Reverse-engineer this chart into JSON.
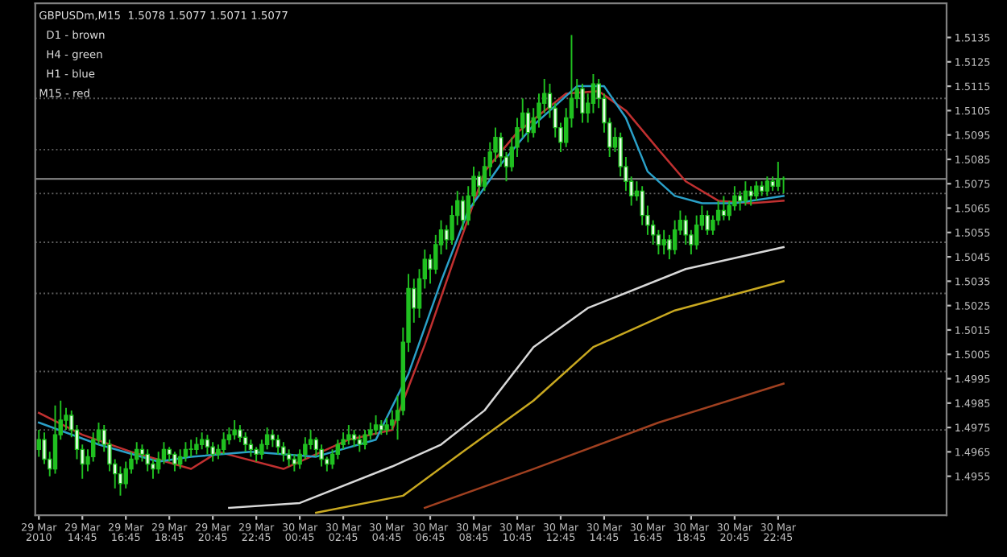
{
  "chart_data": {
    "type": "candlestick",
    "annotations": [
      "GBPUSDm,M15  1.5078 1.5077 1.5071 1.5077",
      "D1 - brown",
      "H4 - green",
      "H1 - blue",
      "M15 - red"
    ],
    "x": [
      "2010-03-29T12:45",
      "2010-03-29T13:00",
      "2010-03-29T13:15",
      "2010-03-29T13:30",
      "2010-03-29T13:45",
      "2010-03-29T14:00",
      "2010-03-29T14:15",
      "2010-03-29T14:30",
      "2010-03-29T14:45",
      "2010-03-29T15:00",
      "2010-03-29T15:15",
      "2010-03-29T15:30",
      "2010-03-29T15:45",
      "2010-03-29T16:00",
      "2010-03-29T16:15",
      "2010-03-29T16:30",
      "2010-03-29T16:45",
      "2010-03-29T17:00",
      "2010-03-29T17:15",
      "2010-03-29T17:30",
      "2010-03-29T17:45",
      "2010-03-29T18:00",
      "2010-03-29T18:15",
      "2010-03-29T18:30",
      "2010-03-29T18:45",
      "2010-03-29T19:00",
      "2010-03-29T19:15",
      "2010-03-29T19:30",
      "2010-03-29T19:45",
      "2010-03-29T20:00",
      "2010-03-29T20:15",
      "2010-03-29T20:30",
      "2010-03-29T20:45",
      "2010-03-29T21:00",
      "2010-03-29T21:15",
      "2010-03-29T21:30",
      "2010-03-29T21:45",
      "2010-03-29T22:00",
      "2010-03-29T22:15",
      "2010-03-29T22:30",
      "2010-03-29T22:45",
      "2010-03-29T23:00",
      "2010-03-29T23:15",
      "2010-03-29T23:30",
      "2010-03-29T23:45",
      "2010-03-30T00:00",
      "2010-03-30T00:15",
      "2010-03-30T00:30",
      "2010-03-30T00:45",
      "2010-03-30T01:00",
      "2010-03-30T01:15",
      "2010-03-30T01:30",
      "2010-03-30T01:45",
      "2010-03-30T02:00",
      "2010-03-30T02:15",
      "2010-03-30T02:30",
      "2010-03-30T02:45",
      "2010-03-30T03:00",
      "2010-03-30T03:15",
      "2010-03-30T03:30",
      "2010-03-30T03:45",
      "2010-03-30T04:00",
      "2010-03-30T04:15",
      "2010-03-30T04:30",
      "2010-03-30T04:45",
      "2010-03-30T05:00",
      "2010-03-30T05:15",
      "2010-03-30T05:30",
      "2010-03-30T05:45",
      "2010-03-30T06:00",
      "2010-03-30T06:15",
      "2010-03-30T06:30",
      "2010-03-30T06:45",
      "2010-03-30T07:00",
      "2010-03-30T07:15",
      "2010-03-30T07:30",
      "2010-03-30T07:45",
      "2010-03-30T08:00",
      "2010-03-30T08:15",
      "2010-03-30T08:30",
      "2010-03-30T08:45",
      "2010-03-30T09:00",
      "2010-03-30T09:15",
      "2010-03-30T09:30",
      "2010-03-30T09:45",
      "2010-03-30T10:00",
      "2010-03-30T10:15",
      "2010-03-30T10:30",
      "2010-03-30T10:45",
      "2010-03-30T11:00",
      "2010-03-30T11:15",
      "2010-03-30T11:30",
      "2010-03-30T11:45",
      "2010-03-30T12:00",
      "2010-03-30T12:15",
      "2010-03-30T12:30",
      "2010-03-30T12:45",
      "2010-03-30T13:00",
      "2010-03-30T13:15",
      "2010-03-30T13:30",
      "2010-03-30T13:45",
      "2010-03-30T14:00",
      "2010-03-30T14:15",
      "2010-03-30T14:30",
      "2010-03-30T14:45",
      "2010-03-30T15:00",
      "2010-03-30T15:15",
      "2010-03-30T15:30",
      "2010-03-30T15:45",
      "2010-03-30T16:00",
      "2010-03-30T16:15",
      "2010-03-30T16:30",
      "2010-03-30T16:45",
      "2010-03-30T17:00",
      "2010-03-30T17:15",
      "2010-03-30T17:30",
      "2010-03-30T17:45",
      "2010-03-30T18:00",
      "2010-03-30T18:15",
      "2010-03-30T18:30",
      "2010-03-30T18:45",
      "2010-03-30T19:00",
      "2010-03-30T19:15",
      "2010-03-30T19:30",
      "2010-03-30T19:45",
      "2010-03-30T20:00",
      "2010-03-30T20:15",
      "2010-03-30T20:30",
      "2010-03-30T20:45",
      "2010-03-30T21:00",
      "2010-03-30T21:15",
      "2010-03-30T21:30",
      "2010-03-30T21:45",
      "2010-03-30T22:00",
      "2010-03-30T22:15",
      "2010-03-30T22:30",
      "2010-03-30T22:45",
      "2010-03-30T23:00"
    ],
    "ohlc": [
      [
        1.4966,
        1.4974,
        1.4963,
        1.497
      ],
      [
        1.497,
        1.4973,
        1.496,
        1.4962
      ],
      [
        1.4962,
        1.4965,
        1.4955,
        1.4958
      ],
      [
        1.4958,
        1.4984,
        1.4956,
        1.4972
      ],
      [
        1.4972,
        1.4986,
        1.497,
        1.4978
      ],
      [
        1.4978,
        1.4983,
        1.4974,
        1.498
      ],
      [
        1.498,
        1.4982,
        1.4971,
        1.4974
      ],
      [
        1.4974,
        1.4976,
        1.4962,
        1.4966
      ],
      [
        1.4966,
        1.4968,
        1.4954,
        1.496
      ],
      [
        1.496,
        1.4966,
        1.4957,
        1.4963
      ],
      [
        1.4963,
        1.4973,
        1.4961,
        1.497
      ],
      [
        1.497,
        1.4977,
        1.4968,
        1.4974
      ],
      [
        1.4974,
        1.4976,
        1.4965,
        1.4968
      ],
      [
        1.4968,
        1.497,
        1.4957,
        1.496
      ],
      [
        1.496,
        1.4962,
        1.495,
        1.4956
      ],
      [
        1.4956,
        1.4959,
        1.4947,
        1.4952
      ],
      [
        1.4952,
        1.4961,
        1.495,
        1.4958
      ],
      [
        1.4958,
        1.4965,
        1.4956,
        1.4962
      ],
      [
        1.4962,
        1.4969,
        1.496,
        1.4966
      ],
      [
        1.4966,
        1.4968,
        1.4961,
        1.4964
      ],
      [
        1.4964,
        1.4966,
        1.4957,
        1.496
      ],
      [
        1.496,
        1.4962,
        1.4954,
        1.4958
      ],
      [
        1.4958,
        1.4965,
        1.4956,
        1.4962
      ],
      [
        1.4962,
        1.4969,
        1.496,
        1.4966
      ],
      [
        1.4966,
        1.4967,
        1.4961,
        1.4964
      ],
      [
        1.4964,
        1.4965,
        1.4957,
        1.496
      ],
      [
        1.496,
        1.4966,
        1.4958,
        1.4963
      ],
      [
        1.4963,
        1.4969,
        1.4961,
        1.4966
      ],
      [
        1.4966,
        1.497,
        1.4963,
        1.4966
      ],
      [
        1.4966,
        1.4971,
        1.4964,
        1.4968
      ],
      [
        1.4968,
        1.4973,
        1.4966,
        1.497
      ],
      [
        1.497,
        1.4972,
        1.4964,
        1.4967
      ],
      [
        1.4967,
        1.4969,
        1.4961,
        1.4964
      ],
      [
        1.4964,
        1.4968,
        1.4962,
        1.4966
      ],
      [
        1.4966,
        1.4973,
        1.4964,
        1.497
      ],
      [
        1.497,
        1.4975,
        1.4968,
        1.4972
      ],
      [
        1.4972,
        1.4978,
        1.497,
        1.4974
      ],
      [
        1.4974,
        1.4976,
        1.4969,
        1.4971
      ],
      [
        1.4971,
        1.4973,
        1.4965,
        1.4968
      ],
      [
        1.4968,
        1.497,
        1.4963,
        1.4966
      ],
      [
        1.4966,
        1.4967,
        1.4961,
        1.4964
      ],
      [
        1.4964,
        1.497,
        1.4962,
        1.4968
      ],
      [
        1.4968,
        1.4975,
        1.4966,
        1.4972
      ],
      [
        1.4972,
        1.4974,
        1.4967,
        1.497
      ],
      [
        1.497,
        1.4972,
        1.4964,
        1.4967
      ],
      [
        1.4967,
        1.4969,
        1.4961,
        1.4964
      ],
      [
        1.4964,
        1.4966,
        1.4959,
        1.4962
      ],
      [
        1.4962,
        1.4964,
        1.4957,
        1.496
      ],
      [
        1.496,
        1.4966,
        1.4958,
        1.4964
      ],
      [
        1.4964,
        1.4971,
        1.4962,
        1.4968
      ],
      [
        1.4968,
        1.4974,
        1.4966,
        1.497
      ],
      [
        1.497,
        1.4971,
        1.4963,
        1.4966
      ],
      [
        1.4966,
        1.4968,
        1.4959,
        1.4962
      ],
      [
        1.4962,
        1.4963,
        1.4957,
        1.496
      ],
      [
        1.496,
        1.4966,
        1.4958,
        1.4964
      ],
      [
        1.4964,
        1.497,
        1.4962,
        1.4968
      ],
      [
        1.4968,
        1.4973,
        1.4966,
        1.497
      ],
      [
        1.497,
        1.4976,
        1.4968,
        1.4972
      ],
      [
        1.4972,
        1.4974,
        1.4967,
        1.497
      ],
      [
        1.497,
        1.4972,
        1.4965,
        1.4968
      ],
      [
        1.4968,
        1.4974,
        1.4966,
        1.4972
      ],
      [
        1.4972,
        1.4977,
        1.497,
        1.4974
      ],
      [
        1.4974,
        1.498,
        1.4972,
        1.4976
      ],
      [
        1.4976,
        1.4978,
        1.4972,
        1.4974
      ],
      [
        1.4974,
        1.4979,
        1.4972,
        1.4976
      ],
      [
        1.4976,
        1.4982,
        1.4974,
        1.4978
      ],
      [
        1.4978,
        1.4988,
        1.497,
        1.4982
      ],
      [
        1.4982,
        1.5016,
        1.498,
        1.501
      ],
      [
        1.501,
        1.5038,
        1.5006,
        1.5032
      ],
      [
        1.5032,
        1.5036,
        1.5018,
        1.5024
      ],
      [
        1.5024,
        1.504,
        1.502,
        1.5036
      ],
      [
        1.5036,
        1.5048,
        1.5032,
        1.5044
      ],
      [
        1.5044,
        1.5046,
        1.5034,
        1.504
      ],
      [
        1.504,
        1.5054,
        1.5038,
        1.505
      ],
      [
        1.505,
        1.506,
        1.5046,
        1.5056
      ],
      [
        1.5056,
        1.5058,
        1.5048,
        1.5052
      ],
      [
        1.5052,
        1.5066,
        1.505,
        1.5062
      ],
      [
        1.5062,
        1.5072,
        1.5058,
        1.5068
      ],
      [
        1.5068,
        1.507,
        1.5056,
        1.506
      ],
      [
        1.506,
        1.5074,
        1.5058,
        1.507
      ],
      [
        1.507,
        1.5082,
        1.5066,
        1.5078
      ],
      [
        1.5078,
        1.508,
        1.507,
        1.5074
      ],
      [
        1.5074,
        1.5086,
        1.5072,
        1.5082
      ],
      [
        1.5082,
        1.5092,
        1.5078,
        1.5088
      ],
      [
        1.5088,
        1.5098,
        1.5084,
        1.5094
      ],
      [
        1.5094,
        1.5096,
        1.5082,
        1.5086
      ],
      [
        1.5086,
        1.5088,
        1.5076,
        1.5082
      ],
      [
        1.5082,
        1.5094,
        1.508,
        1.509
      ],
      [
        1.509,
        1.5102,
        1.5086,
        1.5098
      ],
      [
        1.5098,
        1.511,
        1.5094,
        1.5104
      ],
      [
        1.5104,
        1.5106,
        1.5092,
        1.5096
      ],
      [
        1.5096,
        1.5106,
        1.5094,
        1.5102
      ],
      [
        1.5102,
        1.5112,
        1.5098,
        1.5108
      ],
      [
        1.5108,
        1.5118,
        1.5104,
        1.5112
      ],
      [
        1.5112,
        1.5116,
        1.5102,
        1.5106
      ],
      [
        1.5106,
        1.5108,
        1.5094,
        1.5098
      ],
      [
        1.5098,
        1.51,
        1.5088,
        1.5092
      ],
      [
        1.5092,
        1.5106,
        1.509,
        1.5102
      ],
      [
        1.5102,
        1.5136,
        1.5098,
        1.511
      ],
      [
        1.511,
        1.5118,
        1.5106,
        1.5114
      ],
      [
        1.5114,
        1.5116,
        1.51,
        1.5104
      ],
      [
        1.5104,
        1.5112,
        1.51,
        1.5108
      ],
      [
        1.5108,
        1.512,
        1.5104,
        1.5116
      ],
      [
        1.5116,
        1.5118,
        1.5106,
        1.511
      ],
      [
        1.511,
        1.5112,
        1.5096,
        1.51
      ],
      [
        1.51,
        1.5102,
        1.5086,
        1.509
      ],
      [
        1.509,
        1.5098,
        1.5088,
        1.5094
      ],
      [
        1.5094,
        1.5096,
        1.5078,
        1.5082
      ],
      [
        1.5082,
        1.5086,
        1.5072,
        1.5076
      ],
      [
        1.5076,
        1.5078,
        1.5066,
        1.507
      ],
      [
        1.507,
        1.5076,
        1.5068,
        1.5072
      ],
      [
        1.5072,
        1.5074,
        1.5058,
        1.5062
      ],
      [
        1.5062,
        1.5066,
        1.5054,
        1.5058
      ],
      [
        1.5058,
        1.506,
        1.505,
        1.5054
      ],
      [
        1.5054,
        1.5056,
        1.5046,
        1.505
      ],
      [
        1.505,
        1.5056,
        1.5046,
        1.5052
      ],
      [
        1.5052,
        1.5054,
        1.5044,
        1.5048
      ],
      [
        1.5048,
        1.506,
        1.5046,
        1.5056
      ],
      [
        1.5056,
        1.5064,
        1.5054,
        1.506
      ],
      [
        1.506,
        1.5062,
        1.505,
        1.5054
      ],
      [
        1.5054,
        1.5056,
        1.5046,
        1.505
      ],
      [
        1.505,
        1.5062,
        1.5048,
        1.5058
      ],
      [
        1.5058,
        1.5066,
        1.5056,
        1.5062
      ],
      [
        1.5062,
        1.5064,
        1.5054,
        1.5056
      ],
      [
        1.5056,
        1.5062,
        1.5054,
        1.506
      ],
      [
        1.506,
        1.5068,
        1.5058,
        1.5064
      ],
      [
        1.5064,
        1.507,
        1.506,
        1.5062
      ],
      [
        1.5062,
        1.5068,
        1.506,
        1.5066
      ],
      [
        1.5066,
        1.5074,
        1.5064,
        1.507
      ],
      [
        1.507,
        1.5072,
        1.5064,
        1.5068
      ],
      [
        1.5068,
        1.5076,
        1.5066,
        1.5072
      ],
      [
        1.5072,
        1.5074,
        1.5066,
        1.507
      ],
      [
        1.507,
        1.5076,
        1.5068,
        1.5074
      ],
      [
        1.5074,
        1.5076,
        1.507,
        1.5072
      ],
      [
        1.5072,
        1.5078,
        1.507,
        1.5076
      ],
      [
        1.5076,
        1.5078,
        1.5072,
        1.5074
      ],
      [
        1.5074,
        1.5084,
        1.5072,
        1.5077
      ],
      [
        1.5077,
        1.5078,
        1.5071,
        1.5077
      ]
    ],
    "series": [
      {
        "type": "line",
        "color": "#c03030",
        "x": [
          "2010-03-29T12:45",
          "2010-03-29T14:45",
          "2010-03-29T17:00",
          "2010-03-29T19:45",
          "2010-03-29T21:00",
          "2010-03-30T00:00",
          "2010-03-30T03:00",
          "2010-03-30T05:00",
          "2010-03-30T06:30",
          "2010-03-30T08:00",
          "2010-03-30T09:15",
          "2010-03-30T10:45",
          "2010-03-30T13:00",
          "2010-03-30T14:30",
          "2010-03-30T15:45",
          "2010-03-30T17:15",
          "2010-03-30T18:30",
          "2010-03-30T20:00",
          "2010-03-30T21:30",
          "2010-03-30T23:00"
        ],
        "values": [
          1.4981,
          1.4972,
          1.4965,
          1.4958,
          1.4965,
          1.4958,
          1.497,
          1.4974,
          1.5009,
          1.5048,
          1.508,
          1.5096,
          1.5112,
          1.5113,
          1.5105,
          1.5089,
          1.5076,
          1.5068,
          1.5067,
          1.5068
        ]
      },
      {
        "type": "line",
        "color": "#2aa0c8",
        "x": [
          "2010-03-29T12:45",
          "2010-03-29T15:30",
          "2010-03-29T18:15",
          "2010-03-29T19:45",
          "2010-03-29T22:30",
          "2010-03-30T01:30",
          "2010-03-30T04:15",
          "2010-03-30T05:45",
          "2010-03-30T07:15",
          "2010-03-30T08:30",
          "2010-03-30T10:00",
          "2010-03-30T11:30",
          "2010-03-30T13:30",
          "2010-03-30T14:45",
          "2010-03-30T15:45",
          "2010-03-30T16:45",
          "2010-03-30T18:00",
          "2010-03-30T19:15",
          "2010-03-30T20:45",
          "2010-03-30T22:15",
          "2010-03-30T23:00"
        ],
        "values": [
          1.4977,
          1.4968,
          1.4961,
          1.4963,
          1.4965,
          1.4963,
          1.497,
          1.4997,
          1.5035,
          1.5064,
          1.5083,
          1.5099,
          1.5115,
          1.5115,
          1.5102,
          1.508,
          1.507,
          1.5067,
          1.5067,
          1.5069,
          1.507
        ]
      },
      {
        "type": "line",
        "color": "#d8d8d8",
        "x": [
          "2010-03-29T21:30",
          "2010-03-30T00:45",
          "2010-03-30T05:00",
          "2010-03-30T07:15",
          "2010-03-30T09:15",
          "2010-03-30T11:30",
          "2010-03-30T14:00",
          "2010-03-30T18:30",
          "2010-03-30T23:00"
        ],
        "values": [
          1.4942,
          1.4944,
          1.4959,
          1.4968,
          1.4982,
          1.5008,
          1.5024,
          1.504,
          1.5049
        ]
      },
      {
        "type": "line",
        "color": "#c8a820",
        "x": [
          "2010-03-30T01:30",
          "2010-03-30T05:30",
          "2010-03-30T08:15",
          "2010-03-30T11:30",
          "2010-03-30T14:15",
          "2010-03-30T18:00",
          "2010-03-30T23:00"
        ],
        "values": [
          1.494,
          1.4947,
          1.4965,
          1.4986,
          1.5008,
          1.5023,
          1.5035
        ]
      },
      {
        "type": "line",
        "color": "#a04020",
        "x": [
          "2010-03-30T06:30",
          "2010-03-30T11:30",
          "2010-03-30T17:15",
          "2010-03-30T23:00"
        ],
        "values": [
          1.4942,
          1.4958,
          1.4977,
          1.4993
        ]
      }
    ],
    "ref_lines": [
      {
        "axis": "y",
        "value": 1.511,
        "color": "#606060",
        "line_style": "dotted"
      },
      {
        "axis": "y",
        "value": 1.5089,
        "color": "#606060",
        "line_style": "dotted"
      },
      {
        "axis": "y",
        "value": 1.5077,
        "color": "#909090",
        "line_style": "solid"
      },
      {
        "axis": "y",
        "value": 1.5071,
        "color": "#606060",
        "line_style": "dotted"
      },
      {
        "axis": "y",
        "value": 1.5051,
        "color": "#606060",
        "line_style": "dotted"
      },
      {
        "axis": "y",
        "value": 1.503,
        "color": "#606060",
        "line_style": "dotted"
      },
      {
        "axis": "y",
        "value": 1.4998,
        "color": "#606060",
        "line_style": "dotted"
      },
      {
        "axis": "y",
        "value": 1.4974,
        "color": "#606060",
        "line_style": "dotted"
      }
    ],
    "xlim": [
      "2010-03-29T12:35",
      "2010-03-31T06:30"
    ],
    "xticks": [
      {
        "value": "2010-03-29T12:45",
        "label": "29 Mar 2010"
      },
      {
        "value": "2010-03-29T14:45",
        "label": "29 Mar 14:45"
      },
      {
        "value": "2010-03-29T16:45",
        "label": "29 Mar 16:45"
      },
      {
        "value": "2010-03-29T18:45",
        "label": "29 Mar 18:45"
      },
      {
        "value": "2010-03-29T20:45",
        "label": "29 Mar 20:45"
      },
      {
        "value": "2010-03-29T22:45",
        "label": "29 Mar 22:45"
      },
      {
        "value": "2010-03-30T00:45",
        "label": "30 Mar 00:45"
      },
      {
        "value": "2010-03-30T02:45",
        "label": "30 Mar 02:45"
      },
      {
        "value": "2010-03-30T04:45",
        "label": "30 Mar 04:45"
      },
      {
        "value": "2010-03-30T06:45",
        "label": "30 Mar 06:45"
      },
      {
        "value": "2010-03-30T08:45",
        "label": "30 Mar 08:45"
      },
      {
        "value": "2010-03-30T10:45",
        "label": "30 Mar 10:45"
      },
      {
        "value": "2010-03-30T12:45",
        "label": "30 Mar 12:45"
      },
      {
        "value": "2010-03-30T14:45",
        "label": "30 Mar 14:45"
      },
      {
        "value": "2010-03-30T16:45",
        "label": "30 Mar 16:45"
      },
      {
        "value": "2010-03-30T18:45",
        "label": "30 Mar 18:45"
      },
      {
        "value": "2010-03-30T20:45",
        "label": "30 Mar 20:45"
      },
      {
        "value": "2010-03-30T22:45",
        "label": "30 Mar 22:45"
      }
    ],
    "ylim": [
      1.4939,
      1.5149
    ],
    "yticks": [
      1.4955,
      1.4965,
      1.4975,
      1.4985,
      1.4995,
      1.5005,
      1.5015,
      1.5025,
      1.5035,
      1.5045,
      1.5055,
      1.5065,
      1.5075,
      1.5085,
      1.5095,
      1.5105,
      1.5115,
      1.5125,
      1.5135
    ],
    "grid": false,
    "legend": false
  }
}
